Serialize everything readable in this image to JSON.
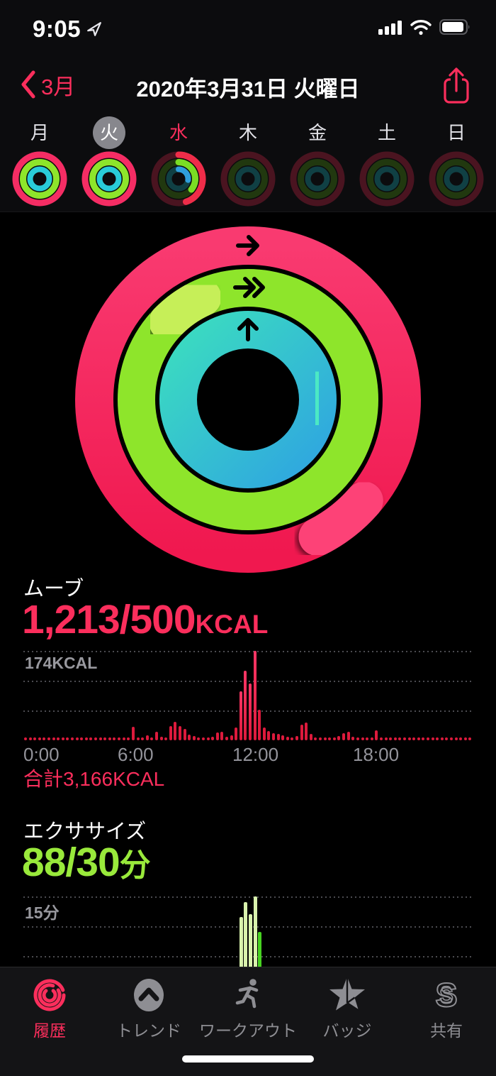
{
  "status_bar": {
    "time": "9:05"
  },
  "nav": {
    "back_label": "3月",
    "title": "2020年3月31日 火曜日"
  },
  "week": {
    "days": [
      {
        "label": "月",
        "state": "full",
        "selected": false,
        "today": false,
        "fractions": [
          1,
          1,
          1
        ]
      },
      {
        "label": "火",
        "state": "full",
        "selected": true,
        "today": false,
        "fractions": [
          1,
          1,
          1
        ]
      },
      {
        "label": "水",
        "state": "partial",
        "selected": false,
        "today": true,
        "fractions": [
          0.45,
          0.36,
          0.27
        ]
      },
      {
        "label": "木",
        "state": "future",
        "selected": false,
        "today": false,
        "fractions": [
          0,
          0,
          0
        ]
      },
      {
        "label": "金",
        "state": "future",
        "selected": false,
        "today": false,
        "fractions": [
          0,
          0,
          0
        ]
      },
      {
        "label": "土",
        "state": "future",
        "selected": false,
        "today": false,
        "fractions": [
          0,
          0,
          0
        ]
      },
      {
        "label": "日",
        "state": "future",
        "selected": false,
        "today": false,
        "fractions": [
          0,
          0,
          0
        ]
      }
    ]
  },
  "activity_rings": {
    "move_cap_deg": 153,
    "exercise_cap_deg": 336,
    "stand_cap_deg": 100,
    "arrow_move": "→",
    "arrow_exercise": "≫",
    "arrow_stand": "↑"
  },
  "move": {
    "label": "ムーブ",
    "value": "1,213/500",
    "unit": "KCAL",
    "total": "合計3,166KCAL"
  },
  "exercise": {
    "label": "エクササイズ",
    "value": "88/30",
    "unit": "分"
  },
  "chart_data": [
    {
      "type": "bar",
      "title": "ムーブ (kcal per 15 min)",
      "ymax": 174,
      "ymax_label": "174KCAL",
      "x_ticks": [
        "0:00",
        "6:00",
        "12:00",
        "18:00"
      ],
      "grid": "dotted",
      "values": [
        4,
        5,
        4,
        6,
        4,
        5,
        4,
        5,
        6,
        4,
        5,
        4,
        6,
        5,
        4,
        5,
        4,
        6,
        4,
        5,
        4,
        5,
        6,
        26,
        6,
        5,
        9,
        6,
        17,
        7,
        6,
        27,
        36,
        28,
        22,
        11,
        8,
        6,
        5,
        6,
        7,
        15,
        17,
        7,
        10,
        25,
        95,
        135,
        110,
        174,
        60,
        25,
        18,
        14,
        12,
        10,
        7,
        6,
        8,
        30,
        34,
        12,
        6,
        5,
        6,
        5,
        6,
        8,
        14,
        16,
        7,
        5,
        6,
        5,
        6,
        20,
        5,
        4,
        6,
        4,
        5,
        4,
        6,
        5,
        4,
        5,
        4,
        6,
        4,
        5,
        4,
        6,
        5,
        4,
        5,
        4
      ]
    },
    {
      "type": "bar",
      "title": "エクササイズ (min per 15 min)",
      "ymax": 15,
      "ymax_label": "15分",
      "grid": "dotted",
      "bars": [
        {
          "slot": 46,
          "value": 11.5,
          "tone": "light"
        },
        {
          "slot": 47,
          "value": 14.0,
          "tone": "light"
        },
        {
          "slot": 48,
          "value": 12.0,
          "tone": "light"
        },
        {
          "slot": 49,
          "value": 15.0,
          "tone": "light"
        },
        {
          "slot": 50,
          "value": 9.0,
          "tone": "bright"
        }
      ]
    }
  ],
  "tab_bar": [
    {
      "label": "履歴",
      "active": true
    },
    {
      "label": "トレンド",
      "active": false
    },
    {
      "label": "ワークアウト",
      "active": false
    },
    {
      "label": "バッジ",
      "active": false
    },
    {
      "label": "共有",
      "active": false
    }
  ],
  "colors": {
    "accent_pink": "#fb2e5c",
    "accent_green": "#99e93b",
    "ring_move": "#f52d64",
    "ring_move_cap": "#fd4377",
    "ring_exercise": "#8ee52b",
    "ring_exercise_cap": "#c6ef58",
    "ring_stand_a": "#3bdcc0",
    "ring_stand_b": "#2fa6e0",
    "ring_stand_cap": "#4ce9c4",
    "mini_bright": [
      "#f52d64",
      "#8ee52b",
      "#29ccd8"
    ],
    "mini_partial": [
      "#ef2d49",
      "#7ade24",
      "#2f9fdc"
    ],
    "mini_dim": [
      "#4a1420",
      "#21380f",
      "#104044"
    ],
    "bar_red": "#dd1a3c",
    "bar_red_bright": "#fb3766",
    "bar_green_light": "#d9f2ad",
    "bar_green_bright": "#47d321"
  }
}
